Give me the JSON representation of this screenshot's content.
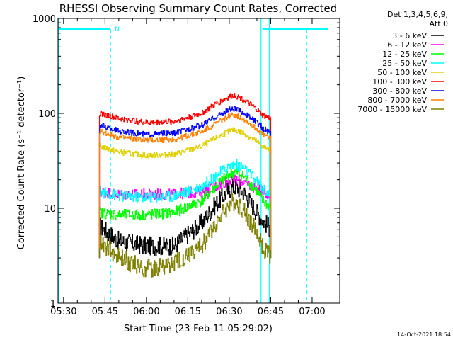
{
  "chart_data": {
    "type": "line",
    "title": "RHESSI Observing Summary Count Rates, Corrected",
    "xlabel": "Start Time (23-Feb-11 05:29:02)",
    "ylabel": "Corrected Count Rate (s⁻¹ detector⁻¹)",
    "y_scale": "log",
    "ylim": [
      1,
      1000
    ],
    "xlim_minutes": [
      0,
      100
    ],
    "x_ticks": [
      "05:30",
      "05:45",
      "06:00",
      "06:15",
      "06:30",
      "06:45",
      "07:00"
    ],
    "x_tick_minutes": [
      0,
      15,
      30,
      45,
      60,
      75,
      90
    ],
    "y_ticks": [
      "1",
      "10",
      "100",
      "1000"
    ],
    "y_tick_values": [
      1,
      10,
      100,
      1000
    ],
    "legend_header": [
      "Det 1,3,4,5,6,9,",
      "Att 0"
    ],
    "legend_position": "right",
    "timestamp": "14-Oct-2021 18:54",
    "annotations": {
      "night_marker_label": "N",
      "night_intervals_minutes": [
        [
          -5,
          17
        ],
        [
          72,
          100
        ]
      ],
      "solid_vlines_minutes": [
        -5,
        71.5,
        74.5
      ],
      "dashed_vlines_minutes": [
        17,
        88
      ]
    },
    "x_minutes": [
      13,
      20,
      30,
      40,
      50,
      55,
      60,
      62,
      65,
      70,
      72,
      75
    ],
    "series": [
      {
        "name": "3 - 6 keV",
        "color": "#000000",
        "values": [
          6.5,
          4.5,
          4.0,
          4.0,
          7.0,
          11.0,
          16.0,
          17.0,
          15.0,
          9.0,
          7.5,
          6.0
        ]
      },
      {
        "name": "6 - 12 keV",
        "color": "#ff00ff",
        "values": [
          15.0,
          14.0,
          14.0,
          14.0,
          15.0,
          17.0,
          20.0,
          20.0,
          19.0,
          16.0,
          15.0,
          14.0
        ]
      },
      {
        "name": "12 - 25 keV",
        "color": "#00ff00",
        "values": [
          9.0,
          8.5,
          8.5,
          9.0,
          12.0,
          17.0,
          23.0,
          24.0,
          22.0,
          15.0,
          12.0,
          10.0
        ]
      },
      {
        "name": "25 - 50 keV",
        "color": "#00ffff",
        "values": [
          15.0,
          13.5,
          13.0,
          13.5,
          17.0,
          22.0,
          28.0,
          29.0,
          27.0,
          19.0,
          16.0,
          14.0
        ]
      },
      {
        "name": "50 - 100 keV",
        "color": "#e0d000",
        "values": [
          45.0,
          39.0,
          36.0,
          37.0,
          45.0,
          55.0,
          65.0,
          67.0,
          62.0,
          50.0,
          45.0,
          40.0
        ]
      },
      {
        "name": "100 - 300 keV",
        "color": "#ff0000",
        "values": [
          100.0,
          88.0,
          80.0,
          82.0,
          100.0,
          125.0,
          150.0,
          155.0,
          140.0,
          110.0,
          95.0,
          88.0
        ]
      },
      {
        "name": "300 - 800 keV",
        "color": "#0000ff",
        "values": [
          75.0,
          65.0,
          60.0,
          62.0,
          75.0,
          92.0,
          110.0,
          112.0,
          102.0,
          80.0,
          70.0,
          62.0
        ]
      },
      {
        "name": "800 - 7000 keV",
        "color": "#ff8000",
        "values": [
          65.0,
          56.0,
          52.0,
          53.0,
          64.0,
          78.0,
          95.0,
          96.0,
          88.0,
          68.0,
          60.0,
          55.0
        ]
      },
      {
        "name": "7000 - 15000 keV",
        "color": "#808000",
        "values": [
          4.5,
          3.0,
          2.3,
          2.6,
          4.0,
          7.0,
          11.0,
          12.0,
          9.5,
          5.5,
          4.0,
          3.0
        ]
      }
    ]
  }
}
